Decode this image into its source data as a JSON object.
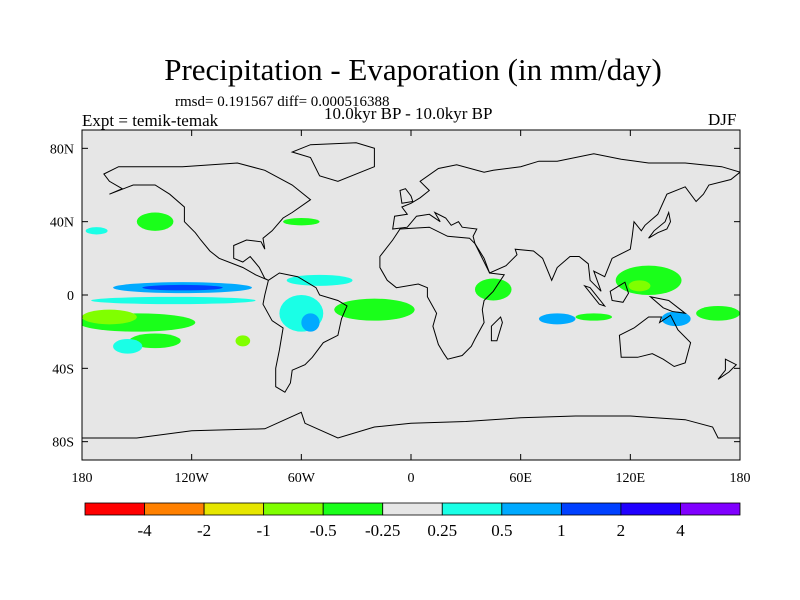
{
  "title": "Precipitation - Evaporation (in mm/day)",
  "stats": "rmsd= 0.191567 diff= 0.000516388",
  "experiment": "Expt = temik-temak",
  "period": "10.0kyr BP - 10.0kyr BP",
  "season": "DJF",
  "chart_data": {
    "type": "heatmap",
    "projection": "cylindrical equidistant",
    "xlim": [
      -180,
      180
    ],
    "ylim": [
      -90,
      90
    ],
    "x_ticks": [
      {
        "value": -180,
        "label": "180"
      },
      {
        "value": -120,
        "label": "120W"
      },
      {
        "value": -60,
        "label": "60W"
      },
      {
        "value": 0,
        "label": "0"
      },
      {
        "value": 60,
        "label": "60E"
      },
      {
        "value": 120,
        "label": "120E"
      },
      {
        "value": 180,
        "label": "180"
      }
    ],
    "y_ticks": [
      {
        "value": 80,
        "label": "80N"
      },
      {
        "value": 40,
        "label": "40N"
      },
      {
        "value": 0,
        "label": "0"
      },
      {
        "value": -40,
        "label": "40S"
      },
      {
        "value": -80,
        "label": "80S"
      }
    ],
    "colorbar": {
      "levels": [
        "-4",
        "-2",
        "-1",
        "-0.5",
        "-0.25",
        "0.25",
        "0.5",
        "1",
        "2",
        "4"
      ],
      "colors": [
        "#ff0000",
        "#ff8000",
        "#e6e600",
        "#80ff00",
        "#1aff1a",
        "#e6e6e6",
        "#1affe6",
        "#00aaff",
        "#0040ff",
        "#2000ff",
        "#8000ff"
      ]
    },
    "anomaly_regions": [
      {
        "lon": -125,
        "lat": 4,
        "rlon": 38,
        "rlat": 3,
        "bin": 7
      },
      {
        "lon": -125,
        "lat": 4,
        "rlon": 22,
        "rlat": 1.5,
        "bin": 8
      },
      {
        "lon": -130,
        "lat": -3,
        "rlon": 45,
        "rlat": 2,
        "bin": 6
      },
      {
        "lon": -150,
        "lat": -15,
        "rlon": 32,
        "rlat": 5,
        "bin": 4
      },
      {
        "lon": -165,
        "lat": -12,
        "rlon": 15,
        "rlat": 4,
        "bin": 3
      },
      {
        "lon": -140,
        "lat": -25,
        "rlon": 14,
        "rlat": 4,
        "bin": 4
      },
      {
        "lon": -155,
        "lat": -28,
        "rlon": 8,
        "rlat": 4,
        "bin": 6
      },
      {
        "lon": -20,
        "lat": -8,
        "rlon": 22,
        "rlat": 6,
        "bin": 4
      },
      {
        "lon": -60,
        "lat": -10,
        "rlon": 12,
        "rlat": 10,
        "bin": 6
      },
      {
        "lon": -55,
        "lat": -15,
        "rlon": 5,
        "rlat": 5,
        "bin": 7
      },
      {
        "lon": -50,
        "lat": 8,
        "rlon": 18,
        "rlat": 3,
        "bin": 6
      },
      {
        "lon": 130,
        "lat": 8,
        "rlon": 18,
        "rlat": 8,
        "bin": 4
      },
      {
        "lon": 125,
        "lat": 5,
        "rlon": 6,
        "rlat": 3,
        "bin": 3
      },
      {
        "lon": 80,
        "lat": -13,
        "rlon": 10,
        "rlat": 3,
        "bin": 7
      },
      {
        "lon": 100,
        "lat": -12,
        "rlon": 10,
        "rlat": 2,
        "bin": 4
      },
      {
        "lon": 145,
        "lat": -13,
        "rlon": 8,
        "rlat": 4,
        "bin": 7
      },
      {
        "lon": 168,
        "lat": -10,
        "rlon": 12,
        "rlat": 4,
        "bin": 4
      },
      {
        "lon": 45,
        "lat": 3,
        "rlon": 10,
        "rlat": 6,
        "bin": 4
      },
      {
        "lon": -140,
        "lat": 40,
        "rlon": 10,
        "rlat": 5,
        "bin": 4
      },
      {
        "lon": -172,
        "lat": 35,
        "rlon": 6,
        "rlat": 2,
        "bin": 6
      },
      {
        "lon": -60,
        "lat": 40,
        "rlon": 10,
        "rlat": 2,
        "bin": 4
      },
      {
        "lon": -92,
        "lat": -25,
        "rlon": 4,
        "rlat": 3,
        "bin": 3
      }
    ]
  }
}
